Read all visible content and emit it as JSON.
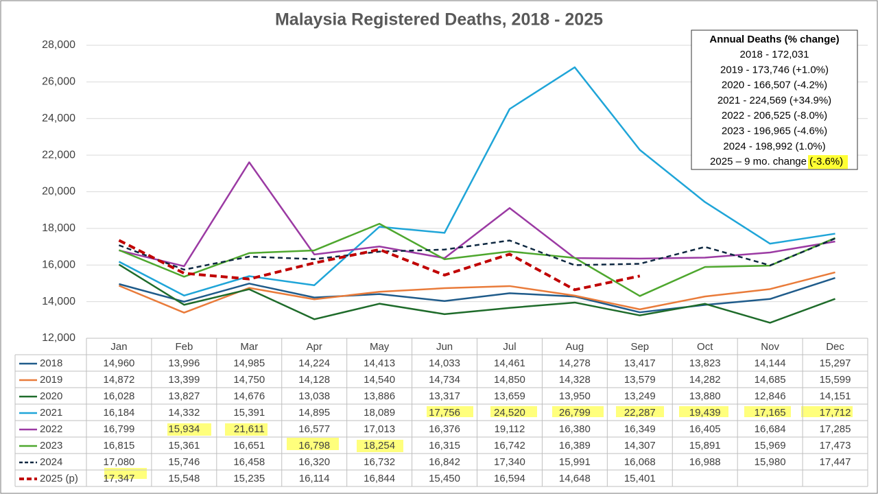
{
  "chart_data": {
    "type": "line",
    "title": "Malaysia Registered Deaths, 2018 - 2025",
    "categories": [
      "Jan",
      "Feb",
      "Mar",
      "Apr",
      "May",
      "Jun",
      "Jul",
      "Aug",
      "Sep",
      "Oct",
      "Nov",
      "Dec"
    ],
    "ylim": [
      12000,
      28000
    ],
    "yticks": [
      {
        "value": 12000,
        "label": "12,000"
      },
      {
        "value": 14000,
        "label": "14,000"
      },
      {
        "value": 16000,
        "label": "16,000"
      },
      {
        "value": 18000,
        "label": "18,000"
      },
      {
        "value": 20000,
        "label": "20,000"
      },
      {
        "value": 22000,
        "label": "22,000"
      },
      {
        "value": 24000,
        "label": "24,000"
      },
      {
        "value": 26000,
        "label": "26,000"
      },
      {
        "value": 28000,
        "label": "28,000"
      }
    ],
    "grid": true,
    "series": [
      {
        "name": "2018",
        "color": "#1f5b8a",
        "line_style": "solid",
        "values": [
          14960,
          13996,
          14985,
          14224,
          14413,
          14033,
          14461,
          14278,
          13417,
          13823,
          14144,
          15297
        ],
        "value_labels": [
          "14,960",
          "13,996",
          "14,985",
          "14,224",
          "14,413",
          "14,033",
          "14,461",
          "14,278",
          "13,417",
          "13,823",
          "14,144",
          "15,297"
        ]
      },
      {
        "name": "2019",
        "color": "#e97b3a",
        "line_style": "solid",
        "values": [
          14872,
          13399,
          14750,
          14128,
          14540,
          14734,
          14850,
          14328,
          13579,
          14282,
          14685,
          15599
        ],
        "value_labels": [
          "14,872",
          "13,399",
          "14,750",
          "14,128",
          "14,540",
          "14,734",
          "14,850",
          "14,328",
          "13,579",
          "14,282",
          "14,685",
          "15,599"
        ]
      },
      {
        "name": "2020",
        "color": "#1e6b2a",
        "line_style": "solid",
        "values": [
          16028,
          13827,
          14676,
          13038,
          13886,
          13317,
          13659,
          13950,
          13249,
          13880,
          12846,
          14151
        ],
        "value_labels": [
          "16,028",
          "13,827",
          "14,676",
          "13,038",
          "13,886",
          "13,317",
          "13,659",
          "13,950",
          "13,249",
          "13,880",
          "12,846",
          "14,151"
        ]
      },
      {
        "name": "2021",
        "color": "#1fa5d8",
        "line_style": "solid",
        "values": [
          16184,
          14332,
          15391,
          14895,
          18089,
          17756,
          24520,
          26799,
          22287,
          19439,
          17165,
          17712
        ],
        "value_labels": [
          "16,184",
          "14,332",
          "15,391",
          "14,895",
          "18,089",
          "17,756",
          "24,520",
          "26,799",
          "22,287",
          "19,439",
          "17,165",
          "17,712"
        ]
      },
      {
        "name": "2022",
        "color": "#9b3aa3",
        "line_style": "solid",
        "values": [
          16799,
          15934,
          21611,
          16577,
          17013,
          16376,
          19112,
          16380,
          16349,
          16405,
          16684,
          17285
        ],
        "value_labels": [
          "16,799",
          "15,934",
          "21,611",
          "16,577",
          "17,013",
          "16,376",
          "19,112",
          "16,380",
          "16,349",
          "16,405",
          "16,684",
          "17,285"
        ]
      },
      {
        "name": "2023",
        "color": "#4ea72e",
        "line_style": "solid",
        "values": [
          16815,
          15361,
          16651,
          16798,
          18254,
          16315,
          16742,
          16389,
          14307,
          15891,
          15969,
          17473
        ],
        "value_labels": [
          "16,815",
          "15,361",
          "16,651",
          "16,798",
          "18,254",
          "16,315",
          "16,742",
          "16,389",
          "14,307",
          "15,891",
          "15,969",
          "17,473"
        ]
      },
      {
        "name": "2024",
        "color": "#0e2841",
        "line_style": "dashed",
        "values": [
          17080,
          15746,
          16458,
          16320,
          16732,
          16842,
          17340,
          15991,
          16068,
          16988,
          15980,
          17447
        ],
        "value_labels": [
          "17,080",
          "15,746",
          "16,458",
          "16,320",
          "16,732",
          "16,842",
          "17,340",
          "15,991",
          "16,068",
          "16,988",
          "15,980",
          "17,447"
        ]
      },
      {
        "name": "2025 (p)",
        "color": "#c00000",
        "line_style": "thick-dashed",
        "values": [
          17347,
          15548,
          15235,
          16114,
          16844,
          15450,
          16594,
          14648,
          15401,
          null,
          null,
          null
        ],
        "value_labels": [
          "17,347",
          "15,548",
          "15,235",
          "16,114",
          "16,844",
          "15,450",
          "16,594",
          "14,648",
          "15,401",
          null,
          null,
          null
        ]
      }
    ],
    "annual_box": {
      "title": "Annual Deaths (% change)",
      "lines": [
        "2018 - 172,031",
        "2019 - 173,746 (+1.0%)",
        "2020 - 166,507 (-4.2%)",
        "2021 - 224,569 (+34.9%)",
        "2022 - 206,525 (-8.0%)",
        "2023 - 196,965 (-4.6%)",
        "2024 - 198,992 (1.0%)"
      ],
      "last_line": "2025 – 9 mo. change",
      "last_highlight": "(-3.6%)"
    }
  }
}
